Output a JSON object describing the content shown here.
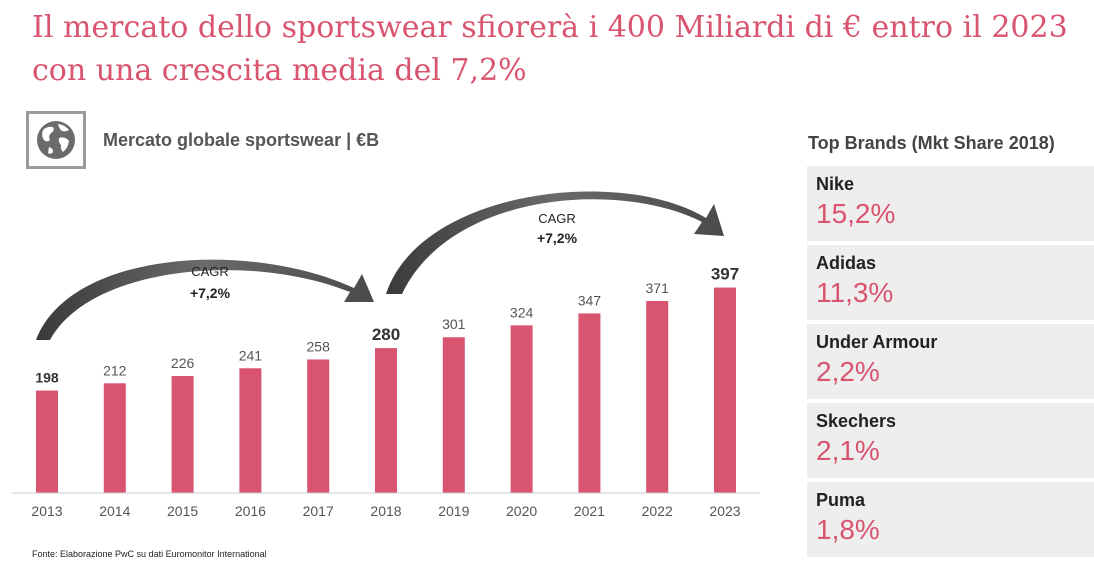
{
  "headline": "Il mercato dello sportswear sfiorerà i 400 Miliardi di € entro il 2023 con una crescita media del 7,2%",
  "chart_data": {
    "type": "bar",
    "title": "Mercato globale sportswear | €B",
    "categories": [
      "2013",
      "2014",
      "2015",
      "2016",
      "2017",
      "2018",
      "2019",
      "2020",
      "2021",
      "2022",
      "2023"
    ],
    "values": [
      198,
      212,
      226,
      241,
      258,
      280,
      301,
      324,
      347,
      371,
      397
    ],
    "highlighted_labels": [
      "2013",
      "2018",
      "2023"
    ],
    "ylim": [
      0,
      400
    ],
    "grid": false,
    "annotations": [
      {
        "label": "CAGR",
        "value": "+7,2%",
        "from": "2013",
        "to": "2018"
      },
      {
        "label": "CAGR",
        "value": "+7,2%",
        "from": "2018",
        "to": "2023"
      }
    ],
    "bar_color": "#d9546f"
  },
  "source": "Fonte: Elaborazione PwC su dati Euromonitor International",
  "globe_icon": "globe-icon",
  "top_brands": {
    "title": "Top Brands (Mkt Share 2018)",
    "items": [
      {
        "name": "Nike",
        "share": "15,2%"
      },
      {
        "name": "Adidas",
        "share": "11,3%"
      },
      {
        "name": "Under Armour",
        "share": "2,2%"
      },
      {
        "name": "Skechers",
        "share": "2,1%"
      },
      {
        "name": "Puma",
        "share": "1,8%"
      }
    ]
  },
  "colors": {
    "accent": "#d9546f",
    "card": "#eeeeee",
    "text": "#444444"
  }
}
